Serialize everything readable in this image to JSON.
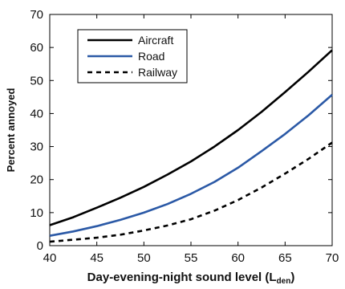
{
  "chart_data": {
    "type": "line",
    "title": "",
    "xlabel": "Day-evening-night sound level (L",
    "xlabel_subscript": "den",
    "xlabel_close": ")",
    "ylabel": "Percent annoyed",
    "xlim": [
      40,
      70
    ],
    "ylim": [
      0,
      70
    ],
    "xticks": [
      40,
      45,
      50,
      55,
      60,
      65,
      70
    ],
    "yticks": [
      0,
      10,
      20,
      30,
      40,
      50,
      60,
      70
    ],
    "grid": false,
    "legend_placement": "top-left",
    "x": [
      40,
      42.5,
      45,
      47.5,
      50,
      52.5,
      55,
      57.5,
      60,
      62.5,
      65,
      67.5,
      70
    ],
    "series": [
      {
        "name": "Aircraft",
        "color": "#000000",
        "line_style": "solid",
        "values": [
          6.2,
          8.6,
          11.5,
          14.5,
          17.8,
          21.5,
          25.5,
          30.0,
          35.0,
          40.5,
          46.5,
          52.7,
          59.2
        ]
      },
      {
        "name": "Road",
        "color": "#2b59a6",
        "line_style": "solid",
        "values": [
          3.0,
          4.3,
          5.9,
          7.8,
          10.0,
          12.6,
          15.7,
          19.3,
          23.6,
          28.6,
          33.8,
          39.5,
          45.7
        ]
      },
      {
        "name": "Railway",
        "color": "#000000",
        "line_style": "dashed",
        "values": [
          1.2,
          1.8,
          2.4,
          3.3,
          4.6,
          6.1,
          8.0,
          10.6,
          13.8,
          17.6,
          21.8,
          26.3,
          31.2
        ]
      }
    ]
  }
}
